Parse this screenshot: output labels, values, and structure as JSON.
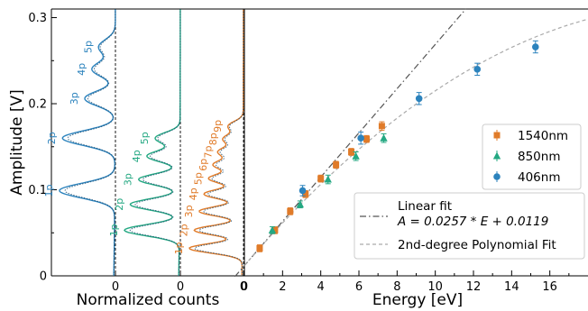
{
  "chart_data": [
    {
      "type": "scatter",
      "panel": "energy",
      "xlabel": "Energy [eV]",
      "ylabel": "Amplitude [V]",
      "xlim": [
        0,
        18
      ],
      "ylim": [
        0,
        0.31
      ],
      "x_ticks": [
        0,
        2,
        4,
        6,
        8,
        10,
        12,
        14,
        16
      ],
      "y_ticks": [
        0,
        0.1,
        0.2,
        0.3
      ],
      "x_tick_labels": [
        "0",
        "2",
        "4",
        "6",
        "8",
        "10",
        "12",
        "14",
        "16"
      ],
      "y_tick_labels": [
        "0",
        "0.1",
        "0.2",
        "0.3"
      ],
      "legend_position": "lower-right",
      "series": [
        {
          "name": "1540nm",
          "color": "#e07b29",
          "marker": "square",
          "x": [
            0.8,
            1.6,
            2.4,
            3.2,
            4.0,
            4.8,
            5.6,
            6.4,
            7.2
          ],
          "y": [
            0.032,
            0.053,
            0.075,
            0.095,
            0.113,
            0.129,
            0.144,
            0.159,
            0.174
          ],
          "err": [
            0.004,
            0.004,
            0.004,
            0.004,
            0.004,
            0.004,
            0.004,
            0.004,
            0.005
          ]
        },
        {
          "name": "850nm",
          "color": "#24a882",
          "marker": "triangle",
          "x": [
            1.46,
            2.92,
            4.38,
            5.84,
            7.3
          ],
          "y": [
            0.053,
            0.083,
            0.112,
            0.139,
            0.16
          ],
          "err": [
            0.004,
            0.004,
            0.005,
            0.005,
            0.005
          ]
        },
        {
          "name": "406nm",
          "color": "#2c83bd",
          "marker": "circle",
          "x": [
            3.05,
            6.1,
            9.15,
            12.2,
            15.25
          ],
          "y": [
            0.099,
            0.16,
            0.206,
            0.24,
            0.266
          ],
          "err": [
            0.006,
            0.007,
            0.007,
            0.007,
            0.007
          ]
        }
      ],
      "fits": [
        {
          "name": "Linear fit",
          "formula": "A = 0.0257 * E + 0.0119",
          "style": "dashdot",
          "color": "#555555",
          "slope": 0.0257,
          "intercept": 0.0119
        },
        {
          "name": "2nd-degree Polynomial Fit",
          "style": "dashed",
          "color": "#aaaaaa",
          "coefficients": [
            -0.00055,
            0.0258,
            0.012
          ]
        }
      ]
    },
    {
      "type": "line",
      "panel": "normalized-counts",
      "xlabel": "Normalized counts",
      "x_tick_labels": [
        "0",
        "0",
        "0"
      ],
      "subpanels": [
        {
          "name": "406nm",
          "color": "#2c83bd",
          "peaks": [
            {
              "label": "1p",
              "y": 0.099
            },
            {
              "label": "2p",
              "y": 0.16
            },
            {
              "label": "3p",
              "y": 0.206
            },
            {
              "label": "4p",
              "y": 0.24
            },
            {
              "label": "5p",
              "y": 0.266
            }
          ]
        },
        {
          "name": "850nm",
          "color": "#24a882",
          "peaks": [
            {
              "label": "1p",
              "y": 0.053
            },
            {
              "label": "2p",
              "y": 0.083
            },
            {
              "label": "3p",
              "y": 0.112
            },
            {
              "label": "4p",
              "y": 0.139
            },
            {
              "label": "5p",
              "y": 0.16
            }
          ]
        },
        {
          "name": "1540nm",
          "color": "#e07b29",
          "peaks": [
            {
              "label": "1p",
              "y": 0.032
            },
            {
              "label": "2p",
              "y": 0.053
            },
            {
              "label": "3p",
              "y": 0.075
            },
            {
              "label": "4p",
              "y": 0.095
            },
            {
              "label": "5p",
              "y": 0.113
            },
            {
              "label": "6p",
              "y": 0.129
            },
            {
              "label": "7p",
              "y": 0.144
            },
            {
              "label": "8p",
              "y": 0.159
            },
            {
              "label": "9p",
              "y": 0.174
            }
          ]
        }
      ]
    }
  ]
}
